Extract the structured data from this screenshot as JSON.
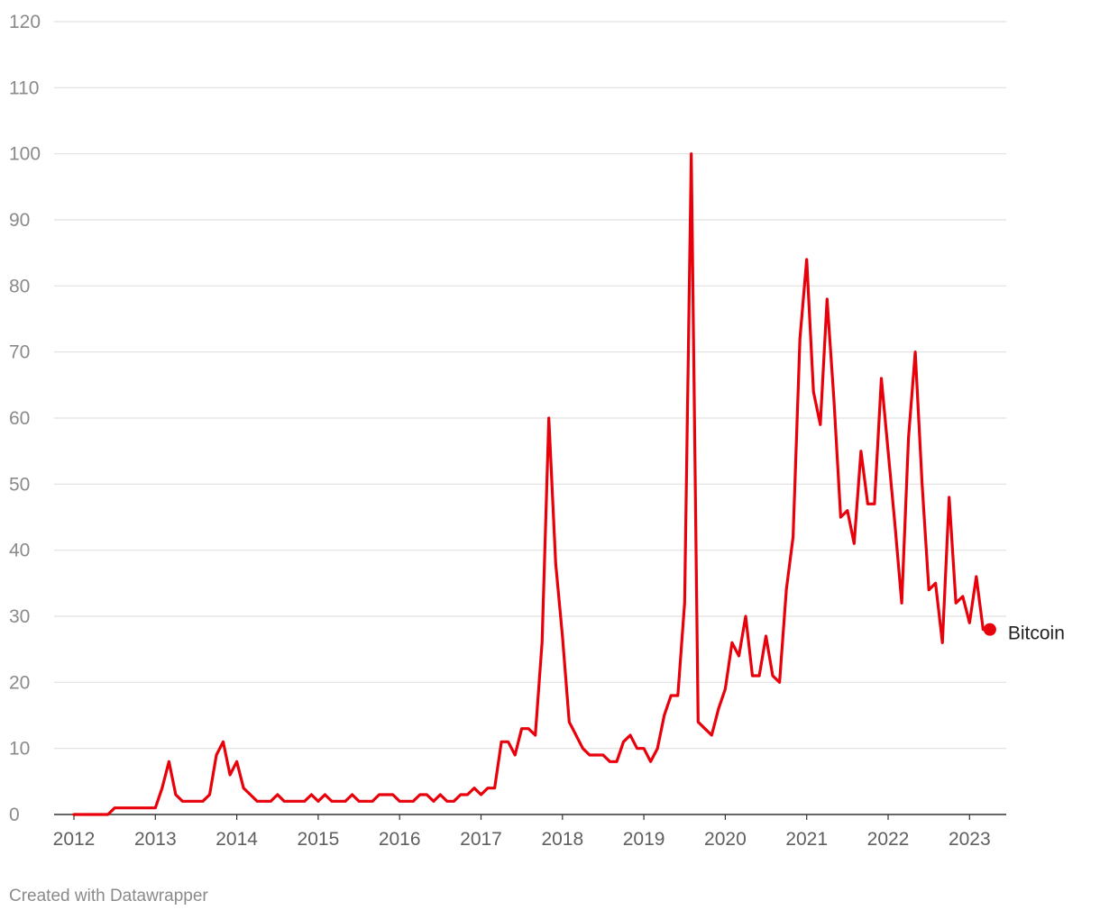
{
  "credit": "Created with Datawrapper",
  "chart_data": {
    "type": "line",
    "title": "",
    "xlabel": "",
    "ylabel": "",
    "xlim": [
      2012,
      2023.5
    ],
    "ylim": [
      0,
      120
    ],
    "y_ticks": [
      0,
      10,
      20,
      30,
      40,
      50,
      60,
      70,
      80,
      90,
      100,
      110,
      120
    ],
    "x_ticks": [
      "2012",
      "2013",
      "2014",
      "2015",
      "2016",
      "2017",
      "2018",
      "2019",
      "2020",
      "2021",
      "2022",
      "2023"
    ],
    "grid": true,
    "colors": {
      "line": "#e8000b",
      "grid": "#e0e0e0",
      "axis": "#333333"
    },
    "series": [
      {
        "name": "Bitcoin",
        "end_marker": true,
        "x": [
          2012.0,
          2012.083,
          2012.167,
          2012.25,
          2012.333,
          2012.417,
          2012.5,
          2012.583,
          2012.667,
          2012.75,
          2012.833,
          2012.917,
          2013.0,
          2013.083,
          2013.167,
          2013.25,
          2013.333,
          2013.417,
          2013.5,
          2013.583,
          2013.667,
          2013.75,
          2013.833,
          2013.917,
          2014.0,
          2014.083,
          2014.167,
          2014.25,
          2014.333,
          2014.417,
          2014.5,
          2014.583,
          2014.667,
          2014.75,
          2014.833,
          2014.917,
          2015.0,
          2015.083,
          2015.167,
          2015.25,
          2015.333,
          2015.417,
          2015.5,
          2015.583,
          2015.667,
          2015.75,
          2015.833,
          2015.917,
          2016.0,
          2016.083,
          2016.167,
          2016.25,
          2016.333,
          2016.417,
          2016.5,
          2016.583,
          2016.667,
          2016.75,
          2016.833,
          2016.917,
          2017.0,
          2017.083,
          2017.167,
          2017.25,
          2017.333,
          2017.417,
          2017.5,
          2017.583,
          2017.667,
          2017.75,
          2017.833,
          2017.917,
          2018.0,
          2018.083,
          2018.167,
          2018.25,
          2018.333,
          2018.417,
          2018.5,
          2018.583,
          2018.667,
          2018.75,
          2018.833,
          2018.917,
          2019.0,
          2019.083,
          2019.167,
          2019.25,
          2019.333,
          2019.417,
          2019.5,
          2019.583,
          2019.667,
          2019.75,
          2019.833,
          2019.917,
          2020.0,
          2020.083,
          2020.167,
          2020.25,
          2020.333,
          2020.417,
          2020.5,
          2020.583,
          2020.667,
          2020.75,
          2020.833,
          2020.917,
          2021.0,
          2021.083,
          2021.167,
          2021.25,
          2021.333,
          2021.417,
          2021.5,
          2021.583,
          2021.667,
          2021.75,
          2021.833,
          2021.917,
          2022.0,
          2022.083,
          2022.167,
          2022.25,
          2022.333,
          2022.417,
          2022.5,
          2022.583,
          2022.667,
          2022.75,
          2022.833,
          2022.917,
          2023.0,
          2023.083,
          2023.167,
          2023.25
        ],
        "values": [
          0,
          0,
          0,
          0,
          0,
          0,
          1,
          1,
          1,
          1,
          1,
          1,
          1,
          4,
          8,
          3,
          2,
          2,
          2,
          2,
          3,
          9,
          11,
          6,
          8,
          4,
          3,
          2,
          2,
          2,
          3,
          2,
          2,
          2,
          2,
          3,
          2,
          3,
          2,
          2,
          2,
          3,
          2,
          2,
          2,
          3,
          3,
          3,
          2,
          2,
          2,
          3,
          3,
          2,
          3,
          2,
          2,
          3,
          3,
          4,
          3,
          4,
          4,
          11,
          11,
          9,
          13,
          13,
          12,
          26,
          60,
          38,
          27,
          14,
          12,
          10,
          9,
          9,
          9,
          8,
          8,
          11,
          12,
          10,
          10,
          8,
          10,
          15,
          18,
          18,
          32,
          100,
          14,
          13,
          12,
          16,
          19,
          26,
          24,
          30,
          21,
          21,
          27,
          21,
          20,
          34,
          42,
          72,
          84,
          64,
          59,
          78,
          63,
          45,
          46,
          41,
          55,
          47,
          47,
          66,
          55,
          44,
          32,
          57,
          70,
          50,
          34,
          35,
          26,
          48,
          32,
          33,
          29,
          36,
          28,
          28
        ]
      }
    ]
  }
}
